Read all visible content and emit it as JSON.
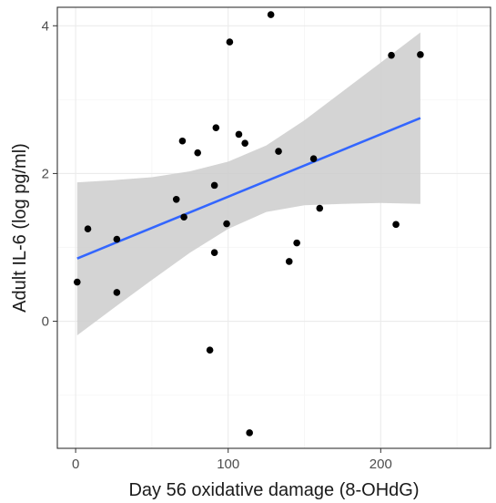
{
  "chart_data": {
    "type": "scatter",
    "title": "",
    "xlabel": "Day 56 oxidative damage (8-OHdG)",
    "ylabel": "Adult IL-6 (log pg/ml)",
    "xlim": [
      -12,
      272
    ],
    "ylim": [
      -1.72,
      4.25
    ],
    "x_ticks": [
      0,
      100,
      200
    ],
    "y_ticks": [
      0,
      2,
      4
    ],
    "grid": true,
    "legend": "none",
    "colors": {
      "points": "#000000",
      "fit_line": "#3366ff",
      "ribbon": "#cccccc",
      "grid_major": "#ebebeb",
      "grid_minor": "#f5f5f5",
      "panel_border": "#333333"
    },
    "points": [
      {
        "x": 1,
        "y": 0.53
      },
      {
        "x": 8,
        "y": 1.25
      },
      {
        "x": 27,
        "y": 1.11
      },
      {
        "x": 27,
        "y": 0.39
      },
      {
        "x": 66,
        "y": 1.65
      },
      {
        "x": 70,
        "y": 2.44
      },
      {
        "x": 71,
        "y": 1.41
      },
      {
        "x": 80,
        "y": 2.28
      },
      {
        "x": 88,
        "y": -0.39
      },
      {
        "x": 91,
        "y": 1.84
      },
      {
        "x": 91,
        "y": 0.93
      },
      {
        "x": 92,
        "y": 2.62
      },
      {
        "x": 99,
        "y": 1.32
      },
      {
        "x": 101,
        "y": 3.78
      },
      {
        "x": 107,
        "y": 2.53
      },
      {
        "x": 111,
        "y": 2.41
      },
      {
        "x": 114,
        "y": -1.51
      },
      {
        "x": 128,
        "y": 4.15
      },
      {
        "x": 133,
        "y": 2.3
      },
      {
        "x": 140,
        "y": 0.81
      },
      {
        "x": 145,
        "y": 1.06
      },
      {
        "x": 156,
        "y": 2.2
      },
      {
        "x": 160,
        "y": 1.53
      },
      {
        "x": 207,
        "y": 3.6
      },
      {
        "x": 210,
        "y": 1.31
      },
      {
        "x": 226,
        "y": 3.61
      }
    ],
    "fit": {
      "x": [
        1,
        226
      ],
      "y": [
        0.85,
        2.75
      ]
    },
    "confidence_band": {
      "x": [
        1,
        25,
        50,
        75,
        100,
        125,
        150,
        175,
        200,
        226
      ],
      "upper": [
        1.88,
        1.91,
        1.95,
        2.03,
        2.16,
        2.38,
        2.72,
        3.11,
        3.5,
        3.91
      ],
      "lower": [
        -0.19,
        0.18,
        0.56,
        0.93,
        1.25,
        1.48,
        1.57,
        1.59,
        1.6,
        1.59
      ]
    }
  }
}
